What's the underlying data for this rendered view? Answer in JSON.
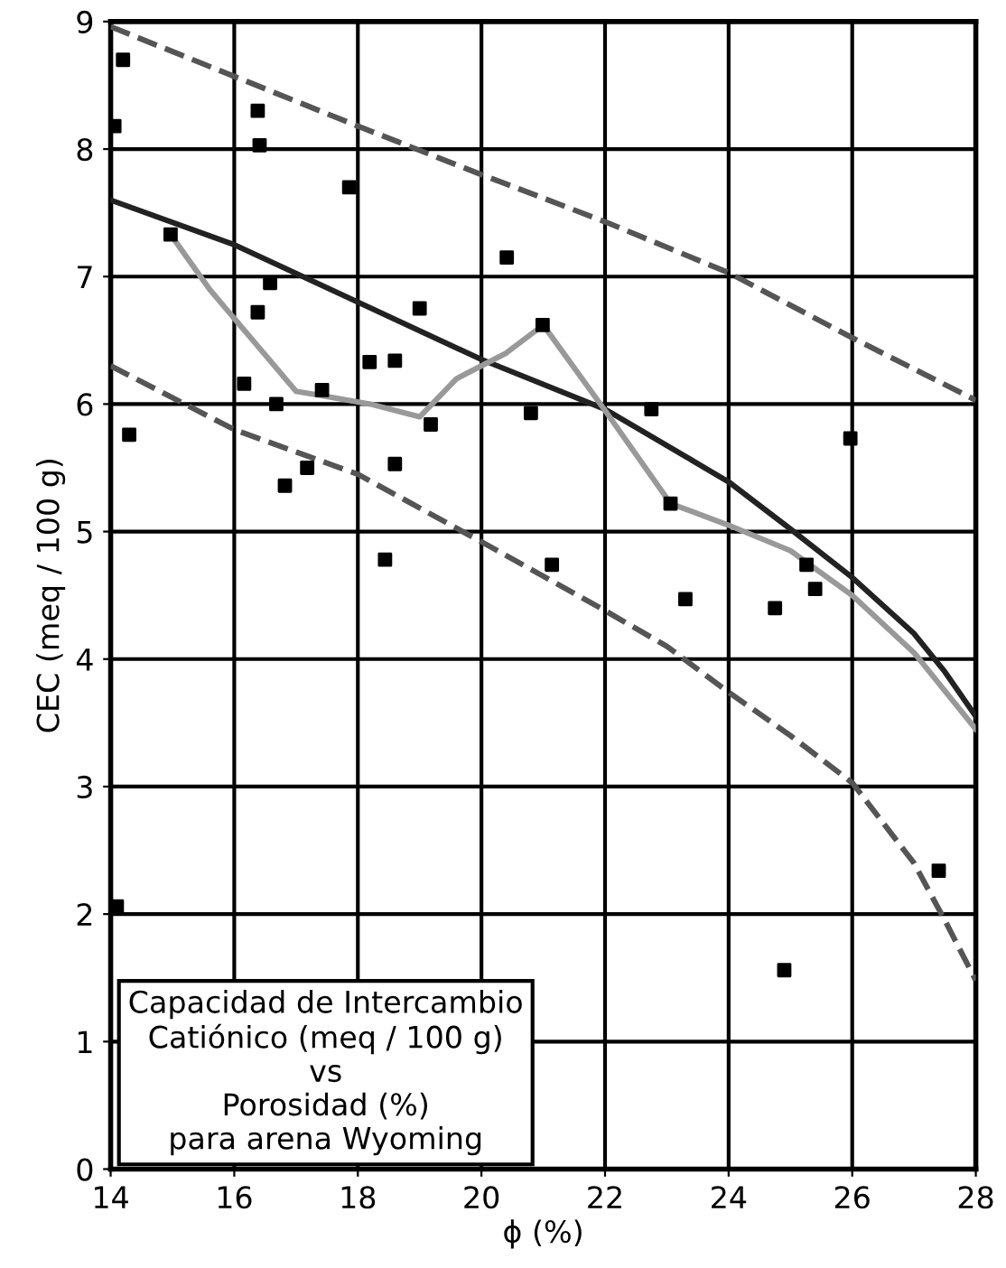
{
  "chart_data": {
    "type": "scatter",
    "xlabel": "ϕ (%)",
    "ylabel": "CEC (meq / 100 g)",
    "annotations": [
      "Capacidad de Intercambio\nCatiónico (meq / 100 g)\nvs\nPorosidad (%)\npara arena Wyoming"
    ],
    "xlim": [
      14,
      28
    ],
    "ylim": [
      0,
      9
    ],
    "xticks": [
      14,
      16,
      18,
      20,
      22,
      24,
      26,
      28
    ],
    "yticks": [
      0,
      1,
      2,
      3,
      4,
      5,
      6,
      7,
      8,
      9
    ],
    "grid": true,
    "series": [
      {
        "type": "line",
        "color": "#555555",
        "line_style": "dashed",
        "marker": "none",
        "x": [
          14,
          16,
          18,
          20,
          22,
          24,
          26,
          28
        ],
        "values": [
          8.96,
          8.57,
          8.18,
          7.8,
          7.43,
          7.03,
          6.52,
          6.03
        ]
      },
      {
        "type": "line",
        "color": "#222222",
        "line_style": "solid",
        "marker": "none",
        "x": [
          14,
          16,
          18,
          20,
          22,
          24,
          25,
          26,
          27,
          27.5,
          28
        ],
        "values": [
          7.6,
          7.25,
          6.8,
          6.35,
          5.96,
          5.39,
          5.02,
          4.64,
          4.2,
          3.9,
          3.55
        ]
      },
      {
        "type": "line",
        "color": "#555555",
        "line_style": "dashed",
        "marker": "none",
        "x": [
          14,
          16,
          18,
          20,
          22,
          23,
          24,
          25,
          26,
          27,
          27.5,
          28
        ],
        "values": [
          6.3,
          5.8,
          5.45,
          4.92,
          4.38,
          4.1,
          3.74,
          3.4,
          3.03,
          2.4,
          1.95,
          1.48
        ]
      },
      {
        "type": "line",
        "color": "#999999",
        "line_style": "solid",
        "marker": "none",
        "x": [
          14.97,
          15.6,
          16.3,
          17.0,
          17.6,
          18.2,
          19.0,
          19.6,
          20.4,
          21.0,
          22.0,
          23.06,
          24.0,
          25.0,
          26.0,
          27.0,
          28.0
        ],
        "values": [
          7.33,
          6.9,
          6.5,
          6.1,
          6.05,
          6.0,
          5.9,
          6.2,
          6.4,
          6.62,
          5.95,
          5.22,
          5.05,
          4.85,
          4.5,
          4.05,
          3.45
        ]
      },
      {
        "color": "#000000",
        "marker": "square",
        "x": [
          14.2,
          14.06,
          16.38,
          16.41,
          17.86,
          14.97,
          16.58,
          16.38,
          19.0,
          18.19,
          18.6,
          16.16,
          17.42,
          16.68,
          19.18,
          14.3,
          17.18,
          16.82,
          18.6,
          18.44,
          20.41,
          20.99,
          20.8,
          22.75,
          23.06,
          21.14,
          23.3,
          24.75,
          25.26,
          25.4,
          25.97,
          27.4,
          24.9,
          14.1
        ],
        "values": [
          8.7,
          8.18,
          8.3,
          8.03,
          7.7,
          7.33,
          6.95,
          6.72,
          6.75,
          6.33,
          6.34,
          6.16,
          6.11,
          6.0,
          5.84,
          5.76,
          5.5,
          5.36,
          5.53,
          4.78,
          7.15,
          6.62,
          5.93,
          5.96,
          5.22,
          4.74,
          4.47,
          4.4,
          4.74,
          4.55,
          5.73,
          2.34,
          1.56,
          2.06
        ]
      }
    ]
  }
}
